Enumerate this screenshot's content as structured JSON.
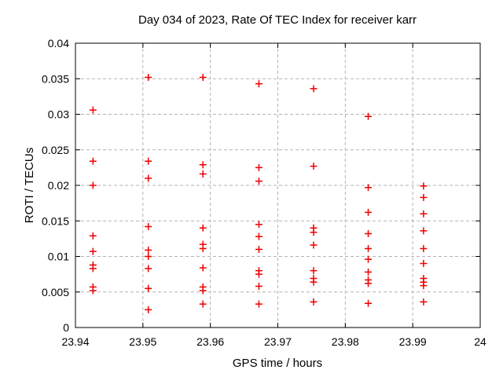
{
  "window": {
    "background": "#ffffff"
  },
  "chart_data": {
    "type": "scatter",
    "title": "Day 034 of 2023, Rate Of TEC Index for receiver karr",
    "xlabel": "GPS time / hours",
    "ylabel": "ROTI / TECUs",
    "xlim": [
      23.94,
      24
    ],
    "ylim": [
      0,
      0.04
    ],
    "grid": true,
    "legend_position": "none",
    "marker": {
      "shape": "plus",
      "color": "#ee0000",
      "size": 9,
      "stroke_width": 1.5
    },
    "grid_color": "#b3b3b3",
    "border_color": "#000000",
    "xticks": [
      {
        "v": 23.94,
        "label": "23.94"
      },
      {
        "v": 23.95,
        "label": "23.95"
      },
      {
        "v": 23.96,
        "label": "23.96"
      },
      {
        "v": 23.97,
        "label": "23.97"
      },
      {
        "v": 23.98,
        "label": "23.98"
      },
      {
        "v": 23.99,
        "label": "23.99"
      },
      {
        "v": 24,
        "label": "24"
      }
    ],
    "yticks": [
      {
        "v": 0,
        "label": "0"
      },
      {
        "v": 0.005,
        "label": "0.005"
      },
      {
        "v": 0.01,
        "label": "0.01"
      },
      {
        "v": 0.015,
        "label": "0.015"
      },
      {
        "v": 0.02,
        "label": "0.02"
      },
      {
        "v": 0.025,
        "label": "0.025"
      },
      {
        "v": 0.03,
        "label": "0.03"
      },
      {
        "v": 0.035,
        "label": "0.035"
      },
      {
        "v": 0.04,
        "label": "0.04"
      }
    ],
    "series": [
      {
        "name": "roti",
        "points": [
          [
            23.9426,
            0.0306
          ],
          [
            23.9426,
            0.0234
          ],
          [
            23.9426,
            0.02
          ],
          [
            23.9426,
            0.0129
          ],
          [
            23.9426,
            0.0107
          ],
          [
            23.9426,
            0.0088
          ],
          [
            23.9426,
            0.0083
          ],
          [
            23.9426,
            0.0057
          ],
          [
            23.9426,
            0.0052
          ],
          [
            23.9508,
            0.0352
          ],
          [
            23.9508,
            0.0234
          ],
          [
            23.9508,
            0.021
          ],
          [
            23.9508,
            0.0142
          ],
          [
            23.9508,
            0.0109
          ],
          [
            23.9508,
            0.01
          ],
          [
            23.9508,
            0.0083
          ],
          [
            23.9508,
            0.0055
          ],
          [
            23.9508,
            0.0025
          ],
          [
            23.9589,
            0.0352
          ],
          [
            23.9589,
            0.0229
          ],
          [
            23.9589,
            0.0216
          ],
          [
            23.9589,
            0.014
          ],
          [
            23.9589,
            0.0117
          ],
          [
            23.9589,
            0.0111
          ],
          [
            23.9589,
            0.0084
          ],
          [
            23.9589,
            0.0057
          ],
          [
            23.9589,
            0.0052
          ],
          [
            23.9589,
            0.0033
          ],
          [
            23.9672,
            0.0343
          ],
          [
            23.9672,
            0.0225
          ],
          [
            23.9672,
            0.0206
          ],
          [
            23.9672,
            0.0145
          ],
          [
            23.9672,
            0.0128
          ],
          [
            23.9672,
            0.011
          ],
          [
            23.9672,
            0.008
          ],
          [
            23.9672,
            0.0075
          ],
          [
            23.9672,
            0.0058
          ],
          [
            23.9672,
            0.0033
          ],
          [
            23.9753,
            0.0336
          ],
          [
            23.9753,
            0.0227
          ],
          [
            23.9753,
            0.014
          ],
          [
            23.9753,
            0.0134
          ],
          [
            23.9753,
            0.0116
          ],
          [
            23.9753,
            0.008
          ],
          [
            23.9753,
            0.0069
          ],
          [
            23.9753,
            0.0064
          ],
          [
            23.9753,
            0.0036
          ],
          [
            23.9834,
            0.0297
          ],
          [
            23.9834,
            0.0197
          ],
          [
            23.9834,
            0.0162
          ],
          [
            23.9834,
            0.0132
          ],
          [
            23.9834,
            0.0111
          ],
          [
            23.9834,
            0.0096
          ],
          [
            23.9834,
            0.0078
          ],
          [
            23.9834,
            0.0067
          ],
          [
            23.9834,
            0.0062
          ],
          [
            23.9834,
            0.0034
          ],
          [
            23.9916,
            0.0199
          ],
          [
            23.9916,
            0.0183
          ],
          [
            23.9916,
            0.016
          ],
          [
            23.9916,
            0.0136
          ],
          [
            23.9916,
            0.0111
          ],
          [
            23.9916,
            0.009
          ],
          [
            23.9916,
            0.0069
          ],
          [
            23.9916,
            0.0064
          ],
          [
            23.9916,
            0.0059
          ],
          [
            23.9916,
            0.0036
          ]
        ]
      }
    ]
  }
}
